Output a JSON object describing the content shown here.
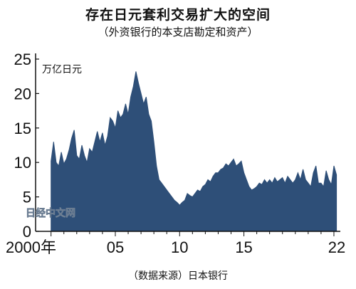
{
  "header": {
    "title": "存在日元套利交易扩大的空间",
    "subtitle": "（外资银行的本支店勘定和资产）"
  },
  "footer": {
    "source": "（数据来源）日本银行"
  },
  "watermark": "日经中文网",
  "colors": {
    "area": "#2e4f78",
    "axis": "#111111",
    "background": "#ffffff"
  },
  "chart_data": {
    "type": "area",
    "title": "存在日元套利交易扩大的空间",
    "subtitle": "（外资银行的本支店勘定和资产）",
    "y_unit": "万亿日元",
    "ylim": [
      0,
      25
    ],
    "y_ticks": [
      0,
      5,
      10,
      15,
      20,
      25
    ],
    "x_ticks": [
      {
        "value": 2000,
        "label": "2000年"
      },
      {
        "value": 2005,
        "label": "05"
      },
      {
        "value": 2010,
        "label": "10"
      },
      {
        "value": 2015,
        "label": "15"
      },
      {
        "value": 2022,
        "label": "22"
      }
    ],
    "xlim": [
      1998.8,
      2022.5
    ],
    "grid": false,
    "series": [
      {
        "values": [
          [
            2000.0,
            10.2
          ],
          [
            2000.2,
            13.0
          ],
          [
            2000.4,
            10.0
          ],
          [
            2000.6,
            9.5
          ],
          [
            2000.8,
            11.5
          ],
          [
            2001.0,
            9.8
          ],
          [
            2001.2,
            10.5
          ],
          [
            2001.4,
            11.8
          ],
          [
            2001.6,
            13.5
          ],
          [
            2001.8,
            14.7
          ],
          [
            2002.0,
            11.0
          ],
          [
            2002.2,
            10.5
          ],
          [
            2002.4,
            12.5
          ],
          [
            2002.6,
            11.0
          ],
          [
            2002.8,
            10.0
          ],
          [
            2003.0,
            12.0
          ],
          [
            2003.2,
            11.5
          ],
          [
            2003.4,
            13.0
          ],
          [
            2003.6,
            14.5
          ],
          [
            2003.8,
            13.0
          ],
          [
            2004.0,
            14.3
          ],
          [
            2004.2,
            12.5
          ],
          [
            2004.4,
            13.8
          ],
          [
            2004.6,
            16.5
          ],
          [
            2004.8,
            16.0
          ],
          [
            2005.0,
            15.0
          ],
          [
            2005.2,
            17.5
          ],
          [
            2005.4,
            16.5
          ],
          [
            2005.6,
            17.0
          ],
          [
            2005.8,
            18.5
          ],
          [
            2006.0,
            17.0
          ],
          [
            2006.2,
            19.5
          ],
          [
            2006.4,
            21.0
          ],
          [
            2006.6,
            23.2
          ],
          [
            2006.8,
            21.5
          ],
          [
            2007.0,
            20.0
          ],
          [
            2007.2,
            18.5
          ],
          [
            2007.4,
            19.5
          ],
          [
            2007.6,
            17.0
          ],
          [
            2007.8,
            16.0
          ],
          [
            2008.0,
            13.0
          ],
          [
            2008.2,
            9.5
          ],
          [
            2008.4,
            7.5
          ],
          [
            2008.6,
            7.0
          ],
          [
            2008.8,
            6.5
          ],
          [
            2009.0,
            6.0
          ],
          [
            2009.2,
            5.5
          ],
          [
            2009.4,
            5.0
          ],
          [
            2009.6,
            4.5
          ],
          [
            2009.8,
            4.2
          ],
          [
            2010.0,
            3.8
          ],
          [
            2010.2,
            4.2
          ],
          [
            2010.4,
            4.5
          ],
          [
            2010.6,
            5.5
          ],
          [
            2010.8,
            5.2
          ],
          [
            2011.0,
            5.0
          ],
          [
            2011.2,
            5.5
          ],
          [
            2011.4,
            6.0
          ],
          [
            2011.6,
            5.8
          ],
          [
            2011.8,
            6.5
          ],
          [
            2012.0,
            6.8
          ],
          [
            2012.2,
            7.5
          ],
          [
            2012.4,
            7.2
          ],
          [
            2012.6,
            8.0
          ],
          [
            2012.8,
            8.5
          ],
          [
            2013.0,
            8.5
          ],
          [
            2013.2,
            9.0
          ],
          [
            2013.4,
            9.2
          ],
          [
            2013.6,
            9.8
          ],
          [
            2013.8,
            9.5
          ],
          [
            2014.0,
            10.0
          ],
          [
            2014.2,
            10.5
          ],
          [
            2014.4,
            9.5
          ],
          [
            2014.6,
            9.8
          ],
          [
            2014.8,
            10.2
          ],
          [
            2015.0,
            8.5
          ],
          [
            2015.2,
            7.5
          ],
          [
            2015.4,
            6.5
          ],
          [
            2015.6,
            6.0
          ],
          [
            2015.8,
            6.2
          ],
          [
            2016.0,
            6.5
          ],
          [
            2016.2,
            7.0
          ],
          [
            2016.4,
            6.8
          ],
          [
            2016.6,
            7.5
          ],
          [
            2016.8,
            7.0
          ],
          [
            2017.0,
            7.5
          ],
          [
            2017.2,
            7.0
          ],
          [
            2017.4,
            7.8
          ],
          [
            2017.6,
            7.2
          ],
          [
            2017.8,
            7.5
          ],
          [
            2018.0,
            7.8
          ],
          [
            2018.2,
            7.0
          ],
          [
            2018.4,
            8.0
          ],
          [
            2018.6,
            7.5
          ],
          [
            2018.8,
            7.0
          ],
          [
            2019.0,
            7.5
          ],
          [
            2019.2,
            8.5
          ],
          [
            2019.4,
            7.5
          ],
          [
            2019.6,
            9.0
          ],
          [
            2019.8,
            7.5
          ],
          [
            2020.0,
            7.0
          ],
          [
            2020.2,
            6.5
          ],
          [
            2020.4,
            8.5
          ],
          [
            2020.6,
            9.5
          ],
          [
            2020.8,
            7.0
          ],
          [
            2021.0,
            7.0
          ],
          [
            2021.2,
            6.5
          ],
          [
            2021.4,
            8.8
          ],
          [
            2021.6,
            7.5
          ],
          [
            2021.8,
            6.8
          ],
          [
            2022.0,
            9.5
          ],
          [
            2022.2,
            8.2
          ]
        ]
      }
    ]
  }
}
